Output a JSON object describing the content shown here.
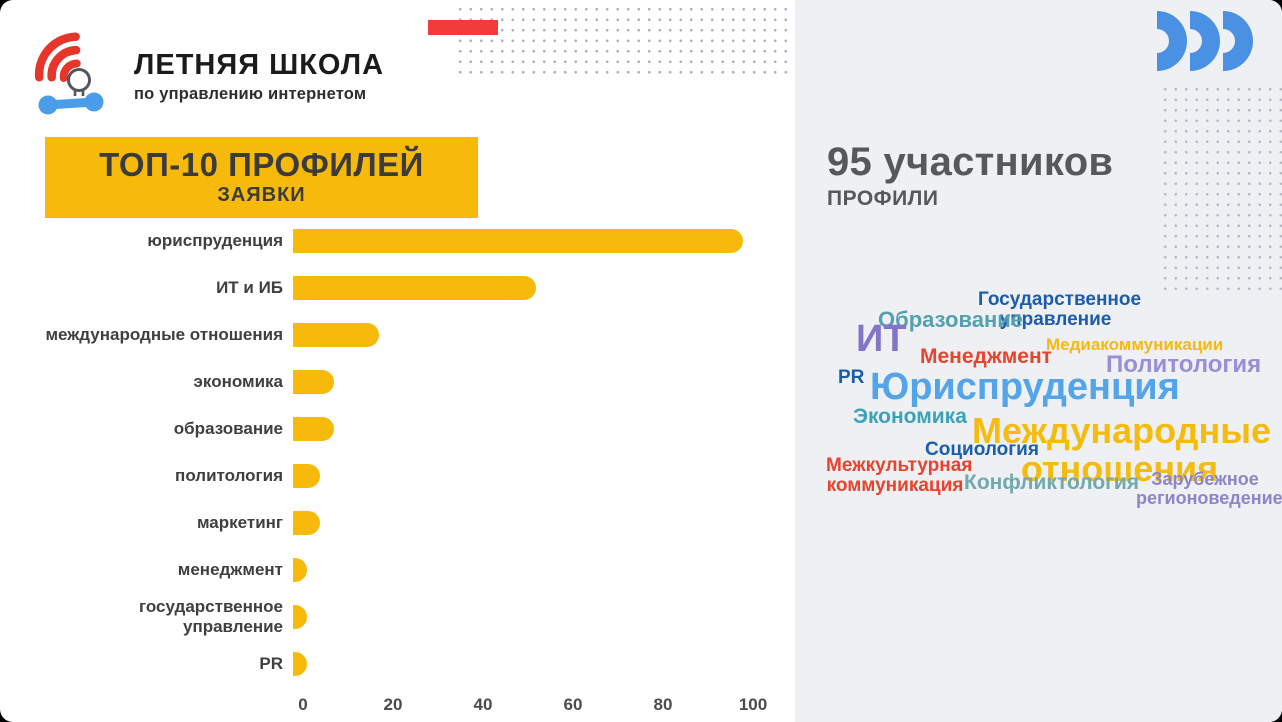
{
  "logo": {
    "title": "ЛЕТНЯЯ ШКОЛА",
    "subtitle": "по управлению интернетом",
    "icon": "wifi-lightbulb-dumbbell-icon"
  },
  "brand_mark": "triple-arc-icon",
  "chart_data": {
    "type": "bar",
    "orientation": "horizontal",
    "title": "ТОП-10 ПРОФИЛЕЙ",
    "subtitle": "ЗАЯВКИ",
    "categories": [
      "юриспруденция",
      "ИТ и ИБ",
      "международные отношения",
      "экономика",
      "образование",
      "политология",
      "маркетинг",
      "менеджмент",
      "государственное управление",
      "PR"
    ],
    "values": [
      100,
      54,
      19,
      9,
      9,
      6,
      6,
      3,
      3,
      3
    ],
    "xlim": [
      0,
      100
    ],
    "xticks": [
      "0",
      "20",
      "40",
      "60",
      "80",
      "100"
    ],
    "bar_color": "#f7ba0b",
    "grid": false,
    "legend": false
  },
  "right_panel": {
    "headline": "95 участников",
    "subheadline": "ПРОФИЛИ",
    "wordcloud": [
      {
        "text": "Государственное\nуправление",
        "color": "#1a5cad"
      },
      {
        "text": "Образование",
        "color": "#55a0af"
      },
      {
        "text": "Медиакоммуникации",
        "color": "#f7b812"
      },
      {
        "text": "ИТ",
        "color": "#8374c9"
      },
      {
        "text": "Менеджмент",
        "color": "#e8432d"
      },
      {
        "text": "Политология",
        "color": "#9a8fd6"
      },
      {
        "text": "PR",
        "color": "#1a5cad"
      },
      {
        "text": "Юриспруденция",
        "color": "#54a4ea"
      },
      {
        "text": "Экономика",
        "color": "#3ba2b8"
      },
      {
        "text": "Международные\nотношения",
        "color": "#f5bb0e"
      },
      {
        "text": "Социология",
        "color": "#1a5cad"
      },
      {
        "text": "Межкультурная\nкоммуникация",
        "color": "#e8432d"
      },
      {
        "text": "Конфликтология",
        "color": "#72a8b0"
      },
      {
        "text": "Зарубежное\nрегионоведение",
        "color": "#8d85cc"
      }
    ]
  },
  "palette": {
    "yellow": "#f7ba0b",
    "accentRed": "#f23b3b",
    "panel": "#eef0f4",
    "gray": "#57585b",
    "logoBlue": "#4a9de8",
    "logoRed": "#e6352b",
    "brandBlue": "#4a91e4"
  }
}
